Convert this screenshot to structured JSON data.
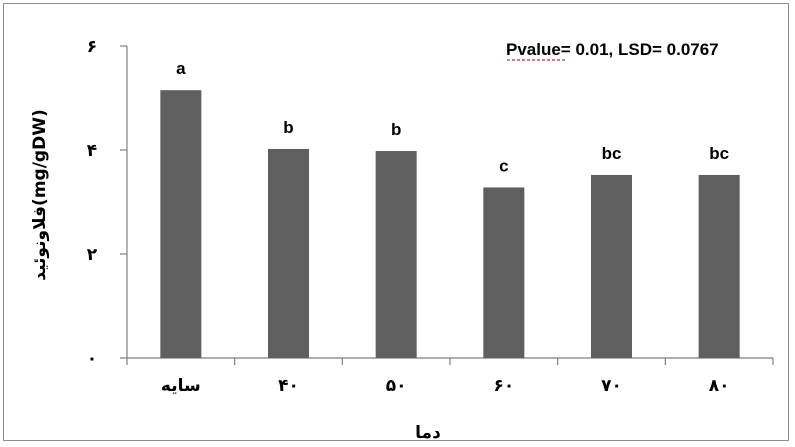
{
  "chart_data": {
    "type": "bar",
    "categories": [
      "سایه",
      "۴۰",
      "۵۰",
      "۶۰",
      "۷۰",
      "۸۰"
    ],
    "values": [
      5.15,
      4.02,
      3.98,
      3.28,
      3.52,
      3.52
    ],
    "data_labels": [
      "a",
      "b",
      "b",
      "c",
      "bc",
      "bc"
    ],
    "xlabel": "دما",
    "ylabel": "فلاونوئید(mg/gDW)",
    "ylim": [
      0,
      6
    ],
    "yticks": [
      0,
      2,
      4,
      6
    ],
    "ytick_labels": [
      "۰",
      "۲",
      "۴",
      "۶"
    ],
    "annotation": "Pvalue= 0.01, LSD= 0.0767",
    "grid": false,
    "legend": "none",
    "bar_color": "#5f5f5f"
  }
}
